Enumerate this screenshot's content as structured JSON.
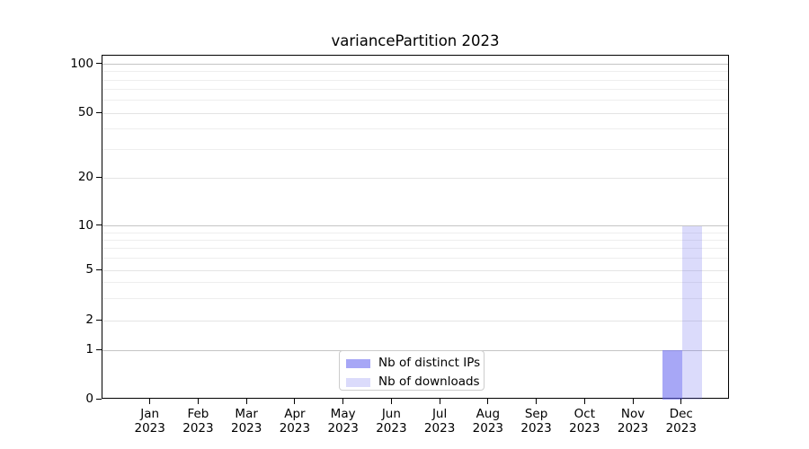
{
  "chart_data": {
    "type": "bar",
    "title": "variancePartition 2023",
    "categories": [
      "Jan 2023",
      "Feb 2023",
      "Mar 2023",
      "Apr 2023",
      "May 2023",
      "Jun 2023",
      "Jul 2023",
      "Aug 2023",
      "Sep 2023",
      "Oct 2023",
      "Nov 2023",
      "Dec 2023"
    ],
    "x_tick_labels": [
      [
        "Jan",
        "2023"
      ],
      [
        "Feb",
        "2023"
      ],
      [
        "Mar",
        "2023"
      ],
      [
        "Apr",
        "2023"
      ],
      [
        "May",
        "2023"
      ],
      [
        "Jun",
        "2023"
      ],
      [
        "Jul",
        "2023"
      ],
      [
        "Aug",
        "2023"
      ],
      [
        "Sep",
        "2023"
      ],
      [
        "Oct",
        "2023"
      ],
      [
        "Nov",
        "2023"
      ],
      [
        "Dec",
        "2023"
      ]
    ],
    "series": [
      {
        "name": "Nb of distinct IPs",
        "values": [
          0,
          0,
          0,
          0,
          0,
          0,
          0,
          0,
          0,
          0,
          0,
          1
        ]
      },
      {
        "name": "Nb of downloads",
        "values": [
          0,
          0,
          0,
          0,
          0,
          0,
          0,
          0,
          0,
          0,
          0,
          10
        ]
      }
    ],
    "y_axis": {
      "tick_labels": [
        "0",
        "1",
        "2",
        "5",
        "10",
        "20",
        "50",
        "100"
      ],
      "tick_values": [
        0,
        1,
        2,
        5,
        10,
        20,
        50,
        100
      ],
      "minor_grid_values": [
        3,
        4,
        6,
        7,
        8,
        9,
        30,
        40,
        60,
        70,
        80,
        90
      ],
      "scale": "log above 1, linear 0-1",
      "grid": true
    },
    "legend": {
      "position": "bottom-center-inside",
      "entries": [
        "Nb of distinct IPs",
        "Nb of downloads"
      ]
    }
  },
  "colors": {
    "bar_distinct_ips": "rgba(100,100,240,0.57)",
    "bar_downloads": "rgba(100,100,240,0.235)",
    "grid_decade": "#c5c5c5",
    "grid_labeled": "#e4e4e4",
    "grid_minor": "#eeeeee",
    "axis": "#000000",
    "legend_border": "#cccccc",
    "background": "#ffffff"
  }
}
